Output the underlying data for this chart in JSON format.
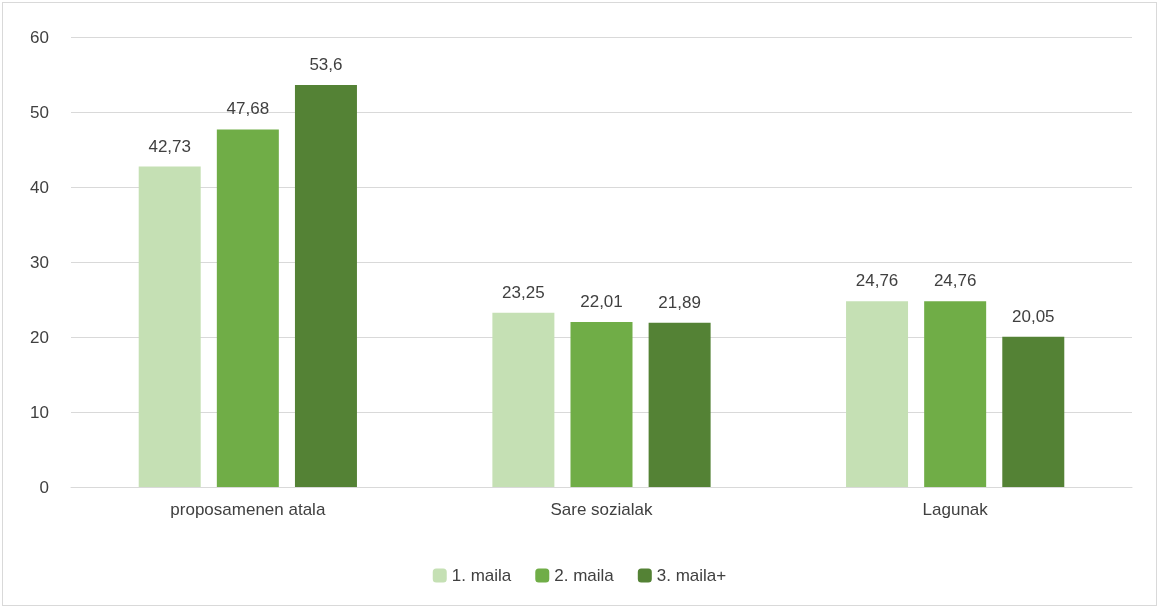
{
  "chart_data": {
    "type": "bar",
    "categories": [
      "proposamenen atala",
      "Sare sozialak",
      "Lagunak"
    ],
    "series": [
      {
        "name": "1. maila",
        "color": "#c5e0b4",
        "values": [
          42.73,
          23.25,
          24.76
        ],
        "value_labels": [
          "42,73",
          "23,25",
          "24,76"
        ]
      },
      {
        "name": "2. maila",
        "color": "#70ad47",
        "values": [
          47.68,
          22.01,
          24.76
        ],
        "value_labels": [
          "47,68",
          "22,01",
          "24,76"
        ]
      },
      {
        "name": "3. maila+",
        "color": "#548235",
        "values": [
          53.6,
          21.89,
          20.05
        ],
        "value_labels": [
          "53,6",
          "21,89",
          "20,05"
        ]
      }
    ],
    "ylim": [
      0,
      60
    ],
    "yticks": [
      0,
      10,
      20,
      30,
      40,
      50,
      60
    ],
    "grid": "y",
    "legend": "bottom"
  }
}
